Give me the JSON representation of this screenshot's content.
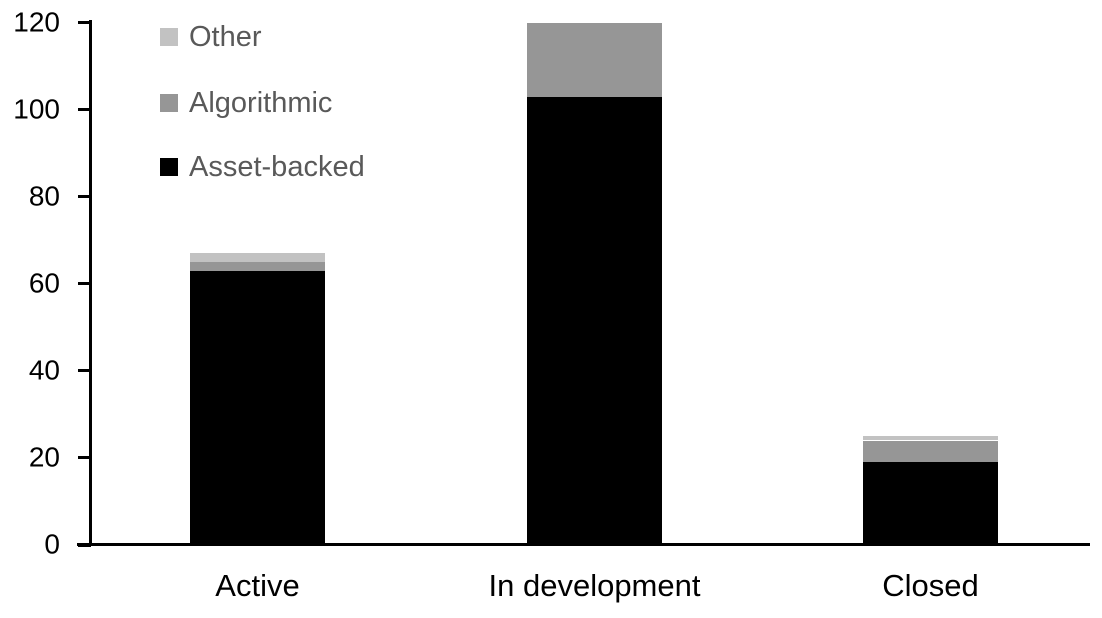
{
  "chart_data": {
    "type": "bar",
    "stacked": true,
    "title": "",
    "xlabel": "",
    "ylabel": "",
    "categories": [
      "Active",
      "In development",
      "Closed"
    ],
    "series": [
      {
        "name": "Asset-backed",
        "color": "#000000",
        "values": [
          63,
          103,
          19
        ]
      },
      {
        "name": "Algorithmic",
        "color": "#969696",
        "values": [
          2,
          17,
          5
        ]
      },
      {
        "name": "Other",
        "color": "#c2c2c2",
        "values": [
          2,
          0,
          1
        ]
      }
    ],
    "totals": [
      67,
      120,
      25
    ],
    "ylim": [
      0,
      120
    ],
    "yticks": [
      0,
      20,
      40,
      60,
      80,
      100,
      120
    ],
    "grid": false,
    "legend_position": "top-left",
    "legend_order": [
      "Other",
      "Algorithmic",
      "Asset-backed"
    ],
    "axis_color": "#000000",
    "tick_label_color": "#000000",
    "category_label_color": "#000000",
    "legend_text_color": "#595959",
    "background_color": "#ffffff"
  }
}
